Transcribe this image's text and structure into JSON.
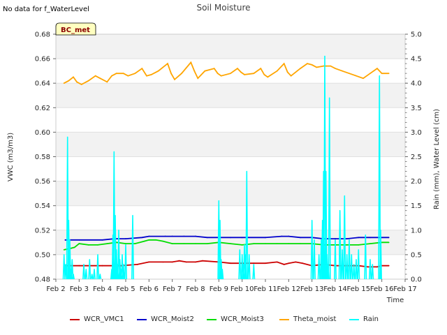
{
  "note": "No data for f_WaterLevel",
  "chart_data": {
    "type": "line",
    "title": "Soil Moisture",
    "xlabel": "Time",
    "ylabel_left": "VWC (m3/m3)",
    "ylabel_right": "Rain (mm), Water Level (cm)",
    "badge": "BC_met",
    "x_ticks": [
      "Feb 2",
      "Feb 3",
      "Feb 4",
      "Feb 5",
      "Feb 6",
      "Feb 7",
      "Feb 8",
      "Feb 9",
      "Feb 10",
      "Feb 11",
      "Feb 12",
      "Feb 13",
      "Feb 14",
      "Feb 15",
      "Feb 16",
      "Feb 17"
    ],
    "x_range_days": [
      2,
      17
    ],
    "y_left": {
      "min": 0.48,
      "max": 0.68,
      "ticks": [
        "0.48",
        "0.50",
        "0.52",
        "0.54",
        "0.56",
        "0.58",
        "0.60",
        "0.62",
        "0.64",
        "0.66",
        "0.68"
      ]
    },
    "y_right": {
      "min": 0.0,
      "max": 5.0,
      "ticks": [
        "0.0",
        "0.5",
        "1.0",
        "1.5",
        "2.0",
        "2.5",
        "3.0",
        "3.5",
        "4.0",
        "4.5",
        "5.0"
      ]
    },
    "series": [
      {
        "name": "WCR_VMC1",
        "color": "#cc0000",
        "axis": "left",
        "x": [
          2.4,
          3.0,
          4.0,
          4.8,
          5.5,
          6.0,
          6.6,
          7.0,
          7.3,
          7.6,
          8.0,
          8.3,
          9.0,
          9.5,
          10.0,
          10.5,
          11.0,
          11.5,
          11.8,
          12.0,
          12.3,
          12.6,
          13.0,
          13.5,
          14.0,
          14.5,
          15.0,
          15.4,
          15.8,
          16.0,
          16.3
        ],
        "y": [
          0.491,
          0.491,
          0.491,
          0.491,
          0.492,
          0.494,
          0.494,
          0.494,
          0.495,
          0.494,
          0.494,
          0.495,
          0.494,
          0.493,
          0.493,
          0.493,
          0.493,
          0.494,
          0.492,
          0.493,
          0.494,
          0.493,
          0.491,
          0.492,
          0.491,
          0.491,
          0.491,
          0.49,
          0.49,
          0.491,
          0.491
        ]
      },
      {
        "name": "WCR_Moist2",
        "color": "#0000cc",
        "axis": "left",
        "x": [
          2.4,
          3.0,
          4.0,
          4.5,
          5.0,
          5.7,
          6.0,
          6.7,
          7.0,
          7.5,
          8.0,
          8.5,
          9.0,
          9.5,
          10.0,
          11.0,
          11.7,
          12.0,
          12.5,
          13.0,
          13.5,
          14.0,
          14.5,
          15.0,
          15.5,
          16.0,
          16.3
        ],
        "y": [
          0.512,
          0.512,
          0.512,
          0.513,
          0.513,
          0.514,
          0.515,
          0.515,
          0.515,
          0.515,
          0.515,
          0.514,
          0.514,
          0.514,
          0.514,
          0.514,
          0.515,
          0.515,
          0.514,
          0.514,
          0.513,
          0.513,
          0.513,
          0.514,
          0.514,
          0.514,
          0.514
        ]
      },
      {
        "name": "WCR_Moist3",
        "color": "#00dd00",
        "axis": "left",
        "x": [
          2.35,
          2.6,
          2.8,
          3.0,
          3.4,
          3.8,
          4.2,
          4.6,
          5.0,
          5.4,
          5.8,
          6.0,
          6.3,
          6.6,
          7.0,
          7.5,
          8.0,
          8.5,
          9.0,
          9.5,
          10.0,
          10.5,
          11.0,
          11.5,
          12.0,
          12.5,
          13.0,
          13.5,
          14.0,
          14.5,
          15.0,
          15.5,
          16.0,
          16.3
        ],
        "y": [
          0.504,
          0.505,
          0.506,
          0.509,
          0.508,
          0.508,
          0.509,
          0.51,
          0.509,
          0.509,
          0.511,
          0.512,
          0.512,
          0.511,
          0.509,
          0.509,
          0.509,
          0.509,
          0.51,
          0.509,
          0.508,
          0.509,
          0.509,
          0.509,
          0.509,
          0.509,
          0.509,
          0.508,
          0.508,
          0.508,
          0.508,
          0.509,
          0.51,
          0.51
        ]
      },
      {
        "name": "Theta_moist",
        "color": "#ffa500",
        "axis": "left",
        "x": [
          2.35,
          2.55,
          2.75,
          2.9,
          3.1,
          3.4,
          3.7,
          3.9,
          4.2,
          4.4,
          4.6,
          4.9,
          5.1,
          5.4,
          5.7,
          5.9,
          6.1,
          6.4,
          6.8,
          6.95,
          7.1,
          7.4,
          7.8,
          7.95,
          8.1,
          8.4,
          8.8,
          8.95,
          9.1,
          9.5,
          9.8,
          9.95,
          10.1,
          10.5,
          10.8,
          10.95,
          11.1,
          11.5,
          11.8,
          11.95,
          12.1,
          12.5,
          12.8,
          13.0,
          13.2,
          13.5,
          13.8,
          14.0,
          14.3,
          14.6,
          14.9,
          15.2,
          15.5,
          15.8,
          16.0,
          16.3
        ],
        "y": [
          0.64,
          0.642,
          0.645,
          0.641,
          0.639,
          0.642,
          0.646,
          0.644,
          0.641,
          0.646,
          0.648,
          0.648,
          0.646,
          0.648,
          0.652,
          0.646,
          0.647,
          0.65,
          0.656,
          0.648,
          0.643,
          0.648,
          0.657,
          0.65,
          0.644,
          0.65,
          0.652,
          0.648,
          0.646,
          0.648,
          0.652,
          0.649,
          0.647,
          0.648,
          0.652,
          0.647,
          0.645,
          0.65,
          0.656,
          0.649,
          0.646,
          0.652,
          0.656,
          0.655,
          0.653,
          0.654,
          0.654,
          0.652,
          0.65,
          0.648,
          0.646,
          0.644,
          0.648,
          0.652,
          0.648,
          0.648
        ]
      },
      {
        "name": "Rain",
        "color": "#00ffff",
        "axis": "right",
        "x": [
          2.35,
          2.42,
          2.5,
          2.55,
          2.6,
          2.65,
          2.7,
          2.75,
          3.2,
          3.3,
          3.45,
          3.55,
          3.65,
          3.8,
          3.9,
          4.4,
          4.45,
          4.5,
          4.55,
          4.6,
          4.65,
          4.7,
          4.75,
          4.8,
          4.85,
          4.9,
          5.0,
          5.3,
          9.0,
          9.05,
          9.1,
          9.15,
          9.9,
          10.0,
          10.05,
          10.1,
          10.15,
          10.2,
          10.3,
          10.5,
          13.0,
          13.1,
          13.3,
          13.4,
          13.45,
          13.5,
          13.55,
          13.6,
          13.65,
          13.7,
          13.75,
          14.0,
          14.2,
          14.3,
          14.4,
          14.5,
          14.6,
          14.7,
          14.8,
          14.9,
          15.0,
          15.3,
          15.5,
          15.6,
          15.9,
          15.95
        ],
        "y": [
          0.5,
          0.3,
          2.9,
          1.2,
          0.8,
          0.2,
          0.4,
          0.1,
          0.3,
          0.2,
          0.4,
          0.1,
          0.2,
          0.5,
          0.1,
          0.2,
          0.9,
          2.6,
          1.3,
          0.6,
          0.3,
          1.0,
          0.4,
          0.2,
          0.5,
          0.3,
          0.7,
          1.3,
          1.6,
          1.2,
          0.4,
          0.2,
          0.6,
          0.5,
          0.3,
          0.7,
          0.5,
          2.2,
          0.5,
          0.3,
          1.2,
          0.8,
          0.5,
          0.8,
          1.2,
          2.2,
          4.55,
          2.2,
          0.5,
          0.3,
          3.7,
          0.8,
          1.4,
          0.6,
          1.7,
          0.5,
          0.8,
          0.5,
          0.3,
          0.4,
          0.6,
          0.9,
          0.4,
          0.3,
          4.15,
          1.0
        ]
      }
    ]
  }
}
